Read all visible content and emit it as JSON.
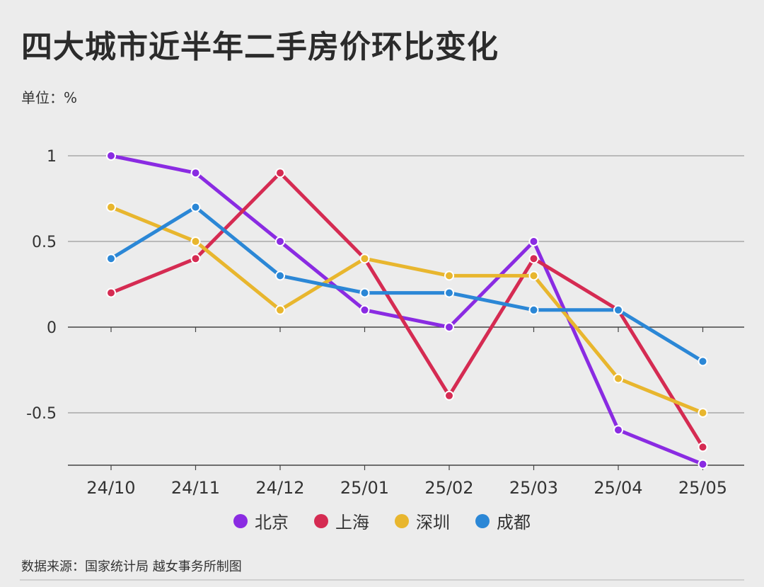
{
  "title": "四大城市近半年二手房价环比变化",
  "unit_label": "单位：%",
  "source": "数据来源：国家统计局 越女事务所制图",
  "chart_data": {
    "type": "line",
    "title": "四大城市近半年二手房价环比变化",
    "ylabel": "单位：%",
    "categories": [
      "24/10",
      "24/11",
      "24/12",
      "25/01",
      "25/02",
      "25/03",
      "25/04",
      "25/05"
    ],
    "y_ticks": [
      1,
      0.5,
      0,
      -0.5
    ],
    "y_tick_labels": [
      "1",
      "0.5",
      "0",
      "-0.5"
    ],
    "ylim": [
      -0.8,
      1.0
    ],
    "grid": true,
    "legend_position": "bottom",
    "series": [
      {
        "name": "北京",
        "color": "#8a2be2",
        "values": [
          1.0,
          0.9,
          0.5,
          0.1,
          0.0,
          0.5,
          -0.6,
          -0.8
        ]
      },
      {
        "name": "上海",
        "color": "#d52b52",
        "values": [
          0.2,
          0.4,
          0.9,
          0.4,
          -0.4,
          0.4,
          0.1,
          -0.7
        ]
      },
      {
        "name": "深圳",
        "color": "#e8b62e",
        "values": [
          0.7,
          0.5,
          0.1,
          0.4,
          0.3,
          0.3,
          -0.3,
          -0.5
        ]
      },
      {
        "name": "成都",
        "color": "#2b87d6",
        "values": [
          0.4,
          0.7,
          0.3,
          0.2,
          0.2,
          0.1,
          0.1,
          -0.2
        ]
      }
    ]
  }
}
